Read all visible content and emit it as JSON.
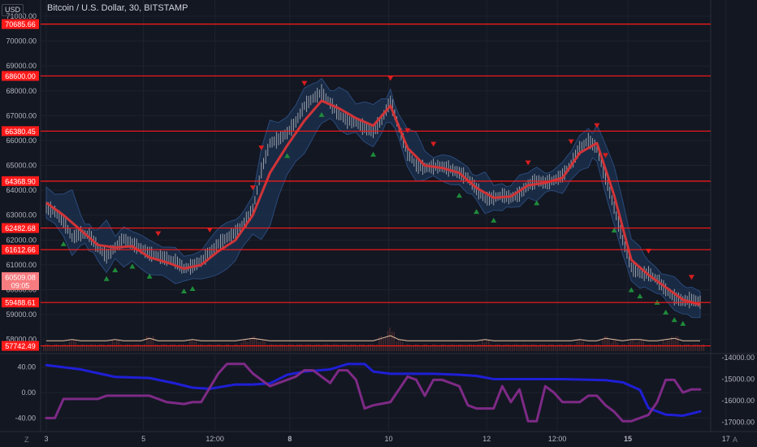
{
  "header": {
    "currency": "USD",
    "title": "Bitcoin / U.S. Dollar, 30, BITSTAMP"
  },
  "corners": {
    "left": "Z",
    "right": "A"
  },
  "colors": {
    "background": "#131722",
    "grid": "#1e222d",
    "hline": "#ff1a1a",
    "ma": "#d03438",
    "band": "#2a4a7a",
    "band_fill": "#1c3150",
    "candle": "#a9acb3",
    "volume": "#4a2a2e",
    "vol_line": "#e8c2a4",
    "osc_blue": "#1f1fd6",
    "osc_purple": "#7e2a86",
    "marker_up": "#1f8b3a",
    "marker_down": "#d81e1e",
    "last_price_bg": "#f77c80"
  },
  "chart_data": [
    {
      "type": "line",
      "title": "Bitcoin / U.S. Dollar, 30, BITSTAMP",
      "ylim": [
        57500,
        71000
      ],
      "y_ticks": [
        "71000.00",
        "70000.00",
        "69000.00",
        "68000.00",
        "67000.00",
        "66000.00",
        "65000.00",
        "64000.00",
        "63000.00",
        "62000.00",
        "61000.00",
        "60000.00",
        "59000.00",
        "58000.00"
      ],
      "x_ticks": [
        {
          "label": "3",
          "x": 0
        },
        {
          "label": "5",
          "x": 11.3
        },
        {
          "label": "12:00",
          "x": 19.6
        },
        {
          "label": "8",
          "x": 28.3
        },
        {
          "label": "10",
          "x": 39.8
        },
        {
          "label": "12",
          "x": 51.2
        },
        {
          "label": "12:00",
          "x": 59.4
        },
        {
          "label": "15",
          "x": 67.6
        },
        {
          "label": "17",
          "x": 79.0
        }
      ],
      "horizontal_levels": [
        70685.66,
        68600.0,
        66380.45,
        64368.9,
        62482.68,
        61612.66,
        59488.61,
        57742.49
      ],
      "last_price": {
        "value": 60509.08,
        "countdown": "09:05"
      },
      "series": [
        {
          "points": [
            [
              0,
              63300
            ],
            [
              1,
              63150
            ],
            [
              2,
              62750
            ],
            [
              3,
              62100
            ],
            [
              4,
              62250
            ],
            [
              5,
              62200
            ],
            [
              6,
              61700
            ],
            [
              7,
              61350
            ],
            [
              8,
              61700
            ],
            [
              9,
              62050
            ],
            [
              10,
              61850
            ],
            [
              11,
              61650
            ],
            [
              12,
              61450
            ],
            [
              13,
              61350
            ],
            [
              14,
              61250
            ],
            [
              15,
              61150
            ],
            [
              16,
              60850
            ],
            [
              17,
              60950
            ],
            [
              18,
              61150
            ],
            [
              19,
              61500
            ],
            [
              20,
              61850
            ],
            [
              21,
              62100
            ],
            [
              22,
              62300
            ],
            [
              23,
              62700
            ],
            [
              24,
              63200
            ],
            [
              25,
              64800
            ],
            [
              26,
              65900
            ],
            [
              27,
              66050
            ],
            [
              28,
              66300
            ],
            [
              29,
              66750
            ],
            [
              30,
              67400
            ],
            [
              31,
              67700
            ],
            [
              32,
              67950
            ],
            [
              33,
              67500
            ],
            [
              34,
              67050
            ],
            [
              35,
              66800
            ],
            [
              36,
              66750
            ],
            [
              37,
              66500
            ],
            [
              38,
              66350
            ],
            [
              39,
              66850
            ],
            [
              40,
              67600
            ],
            [
              41,
              66500
            ],
            [
              42,
              65500
            ],
            [
              43,
              65000
            ],
            [
              44,
              64900
            ],
            [
              45,
              64950
            ],
            [
              46,
              64950
            ],
            [
              47,
              64850
            ],
            [
              48,
              64700
            ],
            [
              49,
              64500
            ],
            [
              50,
              64050
            ],
            [
              51,
              63650
            ],
            [
              52,
              63700
            ],
            [
              53,
              63800
            ],
            [
              54,
              63700
            ],
            [
              55,
              63850
            ],
            [
              56,
              64200
            ],
            [
              57,
              64400
            ],
            [
              58,
              64300
            ],
            [
              59,
              64400
            ],
            [
              60,
              64600
            ],
            [
              61,
              65050
            ],
            [
              62,
              65700
            ],
            [
              63,
              66000
            ],
            [
              64,
              65700
            ],
            [
              65,
              64500
            ],
            [
              66,
              63300
            ],
            [
              67,
              62000
            ],
            [
              68,
              60900
            ],
            [
              69,
              60650
            ],
            [
              70,
              60650
            ],
            [
              71,
              60400
            ],
            [
              72,
              60000
            ],
            [
              73,
              59700
            ],
            [
              74,
              59550
            ],
            [
              75,
              59600
            ],
            [
              76,
              59500
            ]
          ]
        },
        {
          "points": [
            [
              0,
              63500
            ],
            [
              2,
              63000
            ],
            [
              4,
              62400
            ],
            [
              6,
              61800
            ],
            [
              8,
              61700
            ],
            [
              10,
              61750
            ],
            [
              12,
              61300
            ],
            [
              14,
              61100
            ],
            [
              16,
              60850
            ],
            [
              18,
              61000
            ],
            [
              20,
              61550
            ],
            [
              22,
              62000
            ],
            [
              24,
              63000
            ],
            [
              26,
              64700
            ],
            [
              28,
              65800
            ],
            [
              30,
              66800
            ],
            [
              32,
              67600
            ],
            [
              34,
              67300
            ],
            [
              36,
              66900
            ],
            [
              38,
              66600
            ],
            [
              40,
              67400
            ],
            [
              42,
              65700
            ],
            [
              44,
              65000
            ],
            [
              46,
              64900
            ],
            [
              48,
              64700
            ],
            [
              50,
              64100
            ],
            [
              52,
              63700
            ],
            [
              54,
              63750
            ],
            [
              56,
              64200
            ],
            [
              58,
              64300
            ],
            [
              60,
              64500
            ],
            [
              62,
              65500
            ],
            [
              64,
              65900
            ],
            [
              66,
              63800
            ],
            [
              68,
              61200
            ],
            [
              70,
              60600
            ],
            [
              72,
              60100
            ],
            [
              74,
              59600
            ],
            [
              76,
              59400
            ]
          ]
        }
      ]
    },
    {
      "type": "bar",
      "title": "",
      "values": [
        1,
        1,
        1,
        2,
        1,
        1,
        1,
        1,
        2,
        1,
        1,
        1,
        3,
        1,
        1,
        1,
        1,
        2,
        1,
        1,
        1,
        1,
        1,
        2,
        3,
        2,
        1,
        1,
        1,
        1,
        1,
        1,
        1,
        1,
        1,
        1,
        1,
        1,
        1,
        3,
        5,
        2,
        1,
        1,
        1,
        1,
        1,
        1,
        1,
        1,
        1,
        2,
        1,
        1,
        1,
        1,
        1,
        1,
        1,
        1,
        1,
        1,
        2,
        1,
        1,
        3,
        2,
        1,
        2,
        2,
        1,
        1,
        2,
        3,
        1,
        1,
        1
      ]
    },
    {
      "type": "line",
      "title": "",
      "y_ticks_left": [
        "40.00",
        "0.00",
        "-40.00"
      ],
      "y_ticks_right": [
        "-14000.00",
        "-15000.00",
        "-16000.00",
        "-17000.00"
      ],
      "ylim_left": [
        -60,
        60
      ],
      "ylim_right": [
        -17400,
        -13850
      ],
      "series": [
        {
          "axis": "right",
          "points": [
            [
              0,
              -14350
            ],
            [
              4,
              -14550
            ],
            [
              8,
              -14900
            ],
            [
              12,
              -14950
            ],
            [
              15,
              -15200
            ],
            [
              17,
              -15400
            ],
            [
              19,
              -15450
            ],
            [
              22,
              -15250
            ],
            [
              24,
              -15250
            ],
            [
              26,
              -15200
            ],
            [
              28,
              -14800
            ],
            [
              30,
              -14650
            ],
            [
              33,
              -14550
            ],
            [
              35,
              -14300
            ],
            [
              37,
              -14300
            ],
            [
              38,
              -14650
            ],
            [
              40,
              -14750
            ],
            [
              43,
              -14750
            ],
            [
              45,
              -14750
            ],
            [
              48,
              -14800
            ],
            [
              50,
              -14850
            ],
            [
              52,
              -15000
            ],
            [
              55,
              -15000
            ],
            [
              60,
              -15000
            ],
            [
              65,
              -15050
            ],
            [
              67,
              -15150
            ],
            [
              69,
              -15500
            ],
            [
              70,
              -16350
            ],
            [
              72,
              -16650
            ],
            [
              74,
              -16700
            ],
            [
              76,
              -16500
            ]
          ]
        },
        {
          "axis": "left",
          "points": [
            [
              0,
              -40
            ],
            [
              1,
              -40
            ],
            [
              2,
              -10
            ],
            [
              3,
              -10
            ],
            [
              5,
              -10
            ],
            [
              6,
              -10
            ],
            [
              7,
              -5
            ],
            [
              8,
              -5
            ],
            [
              9,
              -5
            ],
            [
              12,
              -5
            ],
            [
              14,
              -15
            ],
            [
              16,
              -18
            ],
            [
              17,
              -15
            ],
            [
              18,
              -15
            ],
            [
              20,
              30
            ],
            [
              21,
              45
            ],
            [
              22,
              45
            ],
            [
              23,
              45
            ],
            [
              24,
              30
            ],
            [
              26,
              10
            ],
            [
              27,
              15
            ],
            [
              29,
              25
            ],
            [
              30,
              35
            ],
            [
              31,
              35
            ],
            [
              32,
              25
            ],
            [
              33,
              15
            ],
            [
              34,
              35
            ],
            [
              35,
              35
            ],
            [
              36,
              20
            ],
            [
              37,
              -25
            ],
            [
              38,
              -20
            ],
            [
              40,
              -15
            ],
            [
              42,
              25
            ],
            [
              43,
              20
            ],
            [
              44,
              -5
            ],
            [
              45,
              20
            ],
            [
              46,
              20
            ],
            [
              47,
              15
            ],
            [
              48,
              10
            ],
            [
              49,
              -20
            ],
            [
              50,
              -25
            ],
            [
              51,
              -25
            ],
            [
              52,
              -25
            ],
            [
              53,
              10
            ],
            [
              54,
              -15
            ],
            [
              55,
              5
            ],
            [
              56,
              -45
            ],
            [
              57,
              -45
            ],
            [
              58,
              10
            ],
            [
              59,
              0
            ],
            [
              60,
              -15
            ],
            [
              62,
              -15
            ],
            [
              63,
              -5
            ],
            [
              64,
              -5
            ],
            [
              65,
              -20
            ],
            [
              66,
              -30
            ],
            [
              67,
              -45
            ],
            [
              68,
              -45
            ],
            [
              69,
              -40
            ],
            [
              70,
              -35
            ],
            [
              71,
              -15
            ],
            [
              72,
              20
            ],
            [
              73,
              20
            ],
            [
              74,
              0
            ],
            [
              75,
              5
            ],
            [
              76,
              5
            ]
          ]
        }
      ]
    }
  ]
}
